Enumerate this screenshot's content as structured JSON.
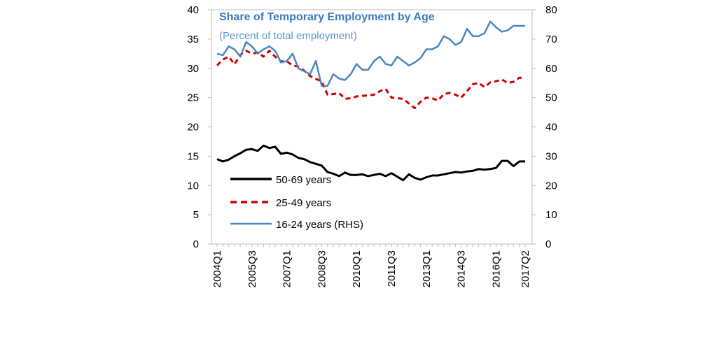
{
  "chart_data": {
    "type": "line",
    "title": "Share of Temporary Employment by Age",
    "subtitle": "(Percent of total employment)",
    "x": [
      "2004Q1",
      "2004Q2",
      "2004Q3",
      "2004Q4",
      "2005Q1",
      "2005Q2",
      "2005Q3",
      "2005Q4",
      "2006Q1",
      "2006Q2",
      "2006Q3",
      "2006Q4",
      "2007Q1",
      "2007Q2",
      "2007Q3",
      "2007Q4",
      "2008Q1",
      "2008Q2",
      "2008Q3",
      "2008Q4",
      "2009Q1",
      "2009Q2",
      "2009Q3",
      "2009Q4",
      "2010Q1",
      "2010Q2",
      "2010Q3",
      "2010Q4",
      "2011Q1",
      "2011Q2",
      "2011Q3",
      "2011Q4",
      "2012Q1",
      "2012Q2",
      "2012Q3",
      "2012Q4",
      "2013Q1",
      "2013Q2",
      "2013Q3",
      "2013Q4",
      "2014Q1",
      "2014Q2",
      "2014Q3",
      "2014Q4",
      "2015Q1",
      "2015Q2",
      "2015Q3",
      "2015Q4",
      "2016Q1",
      "2016Q2",
      "2016Q3",
      "2016Q4",
      "2017Q1",
      "2017Q2"
    ],
    "x_tick_labels": [
      "2004Q1",
      "2005Q3",
      "2007Q1",
      "2008Q3",
      "2010Q1",
      "2011Q3",
      "2013Q1",
      "2014Q3",
      "2016Q1",
      "2017Q2"
    ],
    "ylim_left": [
      0,
      40
    ],
    "ylim_right": [
      0,
      80
    ],
    "yticks_left": [
      "0",
      "5",
      "10",
      "15",
      "20",
      "25",
      "30",
      "35",
      "40"
    ],
    "yticks_right": [
      "0",
      "10",
      "20",
      "30",
      "40",
      "50",
      "60",
      "70",
      "80"
    ],
    "series": [
      {
        "name": "50-69 years",
        "axis": "left",
        "color": "#000000",
        "style": "solid",
        "values": [
          14.5,
          14.1,
          14.4,
          15.0,
          15.5,
          16.1,
          16.2,
          15.9,
          16.8,
          16.4,
          16.6,
          15.4,
          15.6,
          15.3,
          14.7,
          14.5,
          14.0,
          13.7,
          13.4,
          12.3,
          12.0,
          11.6,
          12.2,
          11.8,
          11.8,
          11.9,
          11.6,
          11.8,
          12.0,
          11.6,
          12.1,
          11.5,
          10.9,
          11.9,
          11.3,
          11.0,
          11.4,
          11.7,
          11.7,
          11.9,
          12.1,
          12.3,
          12.2,
          12.4,
          12.5,
          12.8,
          12.7,
          12.8,
          13.0,
          14.2,
          14.2,
          13.3,
          14.1,
          14.1
        ]
      },
      {
        "name": "25-49 years",
        "axis": "left",
        "color": "#cc0000",
        "style": "dashed",
        "values": [
          30.5,
          31.5,
          32.0,
          30.7,
          32.3,
          33.0,
          32.5,
          32.7,
          32.0,
          33.0,
          32.0,
          31.2,
          31.2,
          30.5,
          30.3,
          29.6,
          28.7,
          28.2,
          27.8,
          25.5,
          25.6,
          25.8,
          24.8,
          24.9,
          25.2,
          25.3,
          25.4,
          25.5,
          26.1,
          26.5,
          25.0,
          24.9,
          24.8,
          24.0,
          23.2,
          24.3,
          25.0,
          24.9,
          24.5,
          25.6,
          25.8,
          25.5,
          25.0,
          26.1,
          27.3,
          27.5,
          26.8,
          27.6,
          27.8,
          28.1,
          27.5,
          27.7,
          28.4,
          28.4
        ]
      },
      {
        "name": "16-24 years (RHS)",
        "axis": "right",
        "color": "#4a86c0",
        "style": "solid",
        "values": [
          65,
          64.5,
          67.5,
          66.5,
          64,
          69,
          67.5,
          65,
          66.5,
          67.5,
          66,
          62,
          62.5,
          65,
          60,
          59,
          58,
          62.5,
          54,
          54,
          58,
          56.5,
          56,
          58,
          61.5,
          59.5,
          59.5,
          62.5,
          64,
          61.5,
          61,
          64,
          62.5,
          61,
          62,
          63.5,
          66.5,
          66.5,
          67.5,
          71,
          70,
          68,
          69,
          73.5,
          71,
          71,
          72,
          76,
          74,
          72.5,
          73,
          74.5,
          74.5,
          74.5
        ]
      }
    ],
    "legend_position": "bottom-left",
    "grid": false
  }
}
